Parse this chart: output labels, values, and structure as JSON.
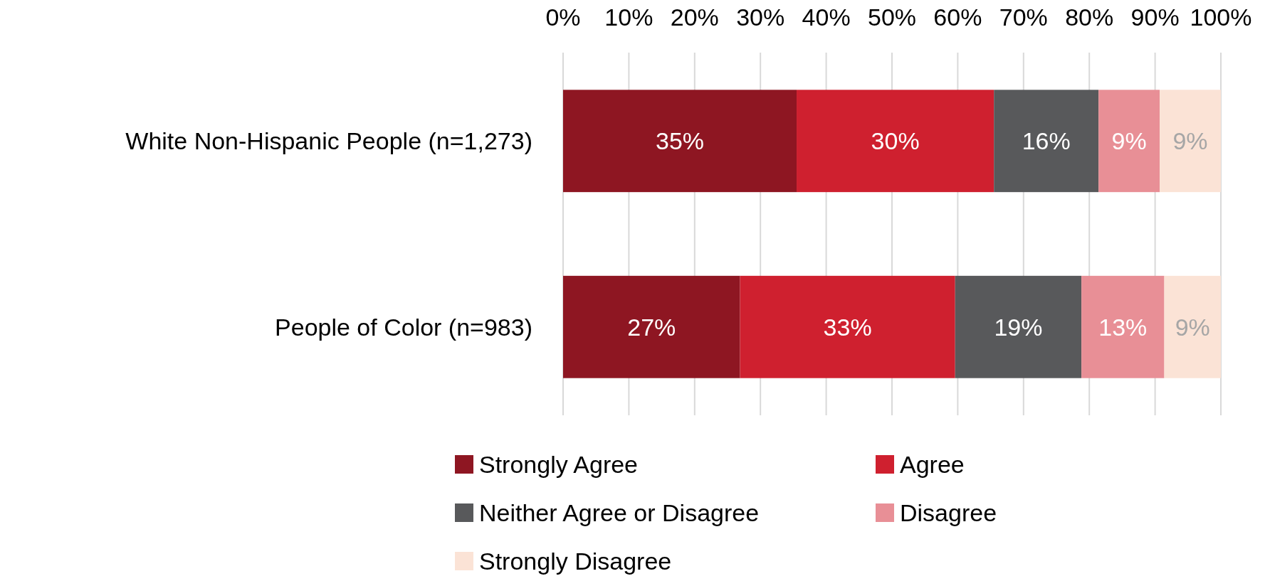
{
  "chart_data": {
    "type": "bar",
    "orientation": "horizontal",
    "stacked": true,
    "categories": [
      "White Non-Hispanic People (n=1,273)",
      "People of Color (n=983)"
    ],
    "series": [
      {
        "name": "Strongly Agree",
        "color": "#8e1622",
        "values": [
          35.5,
          26.9
        ],
        "value_labels": [
          "35%",
          "27%"
        ]
      },
      {
        "name": "Agree",
        "color": "#cf202f",
        "values": [
          30.0,
          32.7
        ],
        "value_labels": [
          "30%",
          "33%"
        ]
      },
      {
        "name": "Neither Agree or Disagree",
        "color": "#58595b",
        "values": [
          15.9,
          19.2
        ],
        "value_labels": [
          "16%",
          "19%"
        ]
      },
      {
        "name": "Disagree",
        "color": "#e88f96",
        "values": [
          9.3,
          12.6
        ],
        "value_labels": [
          "9%",
          "13%"
        ]
      },
      {
        "name": "Strongly Disagree",
        "color": "#fbe3d6",
        "values": [
          9.3,
          8.6
        ],
        "value_labels": [
          "9%",
          "9%"
        ]
      }
    ],
    "xlim": [
      0,
      100
    ],
    "xticks": [
      {
        "value": 0,
        "label": "0%"
      },
      {
        "value": 10,
        "label": "10%"
      },
      {
        "value": 20,
        "label": "20%"
      },
      {
        "value": 30,
        "label": "30%"
      },
      {
        "value": 40,
        "label": "40%"
      },
      {
        "value": 50,
        "label": "50%"
      },
      {
        "value": 60,
        "label": "60%"
      },
      {
        "value": 70,
        "label": "70%"
      },
      {
        "value": 80,
        "label": "80%"
      },
      {
        "value": 90,
        "label": "90%"
      },
      {
        "value": 100,
        "label": "100%"
      }
    ],
    "grid": "x",
    "legend": "bottom"
  }
}
